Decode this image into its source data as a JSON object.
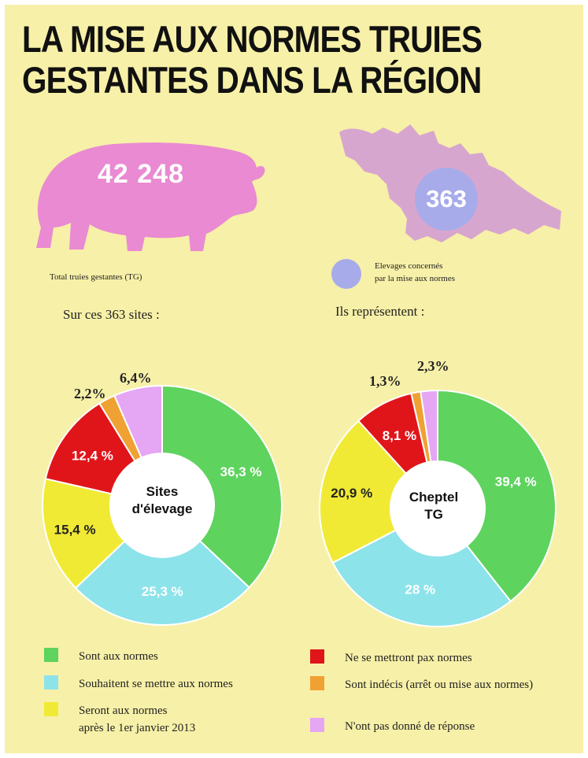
{
  "title_line1": "LA MISE AUX NORMES TRUIES",
  "title_line2": "GESTANTES DANS LA RÉGION",
  "pig": {
    "number": "42 248",
    "caption": "Total truies gestantes (TG)",
    "color": "#e98ad2"
  },
  "region": {
    "number": "363",
    "legend_line1": "Elevages concernés",
    "legend_line2": "par la mise aux normes",
    "map_color": "#d7a6cf",
    "circle_color": "#a7abea"
  },
  "subhead_left": "Sur ces 363 sites :",
  "subhead_right": "Ils représentent :",
  "colors": {
    "green": "#5ed35e",
    "cyan": "#8de3ea",
    "yellow": "#f1ea35",
    "red": "#e0151a",
    "orange": "#f0a133",
    "purple": "#e5a6f4"
  },
  "chart_data": [
    {
      "type": "pie",
      "title": "Sites d'élevage",
      "center_line1": "Sites",
      "center_line2": "d'élevage",
      "slices": [
        {
          "label": "Sont aux normes",
          "value": 36.3,
          "display": "36,3 %",
          "color_key": "green"
        },
        {
          "label": "Souhaitent se mettre aux normes",
          "value": 25.3,
          "display": "25,3 %",
          "color_key": "cyan"
        },
        {
          "label": "Seront aux normes après le 1er janvier 2013",
          "value": 15.4,
          "display": "15,4 %",
          "color_key": "yellow"
        },
        {
          "label": "Ne se mettront pax normes",
          "value": 12.4,
          "display": "12,4 %",
          "color_key": "red"
        },
        {
          "label": "Sont indécis (arrêt ou mise aux normes)",
          "value": 2.2,
          "display": "2,2%",
          "color_key": "orange"
        },
        {
          "label": "N'ont pas donné de réponse",
          "value": 6.4,
          "display": "6,4%",
          "color_key": "purple"
        }
      ]
    },
    {
      "type": "pie",
      "title": "Cheptel TG",
      "center_line1": "Cheptel",
      "center_line2": "TG",
      "slices": [
        {
          "label": "Sont aux normes",
          "value": 39.4,
          "display": "39,4 %",
          "color_key": "green"
        },
        {
          "label": "Souhaitent se mettre aux normes",
          "value": 28,
          "display": "28 %",
          "color_key": "cyan"
        },
        {
          "label": "Seront aux normes après le 1er janvier 2013",
          "value": 20.9,
          "display": "20,9 %",
          "color_key": "yellow"
        },
        {
          "label": "Ne se mettront pax normes",
          "value": 8.1,
          "display": "8,1 %",
          "color_key": "red"
        },
        {
          "label": "Sont indécis (arrêt ou mise aux normes)",
          "value": 1.3,
          "display": "1,3%",
          "color_key": "orange"
        },
        {
          "label": "N'ont pas donné de réponse",
          "value": 2.3,
          "display": "2,3%",
          "color_key": "purple"
        }
      ]
    }
  ],
  "legend": [
    {
      "lines": [
        "Sont aux normes"
      ],
      "color_key": "green"
    },
    {
      "lines": [
        "Souhaitent se mettre aux normes"
      ],
      "color_key": "cyan"
    },
    {
      "lines": [
        "Seront aux normes",
        "après le 1er janvier 2013"
      ],
      "color_key": "yellow"
    },
    {
      "lines": [
        "Ne se mettront pax normes"
      ],
      "color_key": "red"
    },
    {
      "lines": [
        "Sont indécis (arrêt ou mise aux normes)"
      ],
      "color_key": "orange"
    },
    {
      "lines": [
        "N'ont pas donné de réponse"
      ],
      "color_key": "purple"
    }
  ]
}
